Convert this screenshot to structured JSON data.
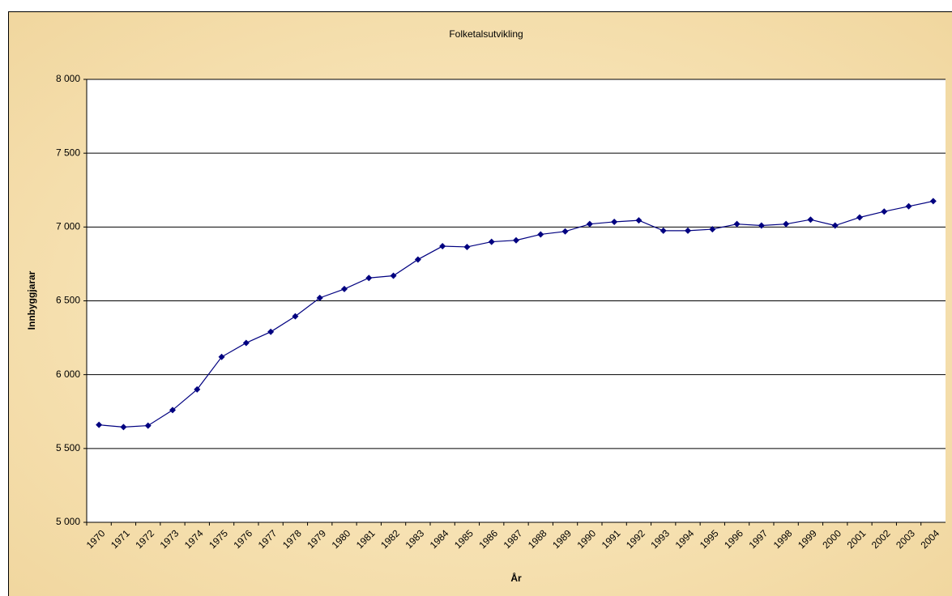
{
  "chart_data": {
    "type": "line",
    "title": "Folketalsutvikling",
    "x_label": "År",
    "y_label": "Innbyggjarar",
    "categories": [
      "1970",
      "1971",
      "1972",
      "1973",
      "1974",
      "1975",
      "1976",
      "1977",
      "1978",
      "1979",
      "1980",
      "1981",
      "1982",
      "1983",
      "1984",
      "1985",
      "1986",
      "1987",
      "1988",
      "1989",
      "1990",
      "1991",
      "1992",
      "1993",
      "1994",
      "1995",
      "1996",
      "1997",
      "1998",
      "1999",
      "2000",
      "2001",
      "2002",
      "2003",
      "2004"
    ],
    "values": [
      5660,
      5645,
      5655,
      5760,
      5900,
      6120,
      6215,
      6290,
      6395,
      6520,
      6580,
      6655,
      6670,
      6780,
      6870,
      6865,
      6900,
      6910,
      6950,
      6970,
      7020,
      7035,
      7045,
      6975,
      6975,
      6985,
      7020,
      7010,
      7020,
      7050,
      7010,
      7065,
      7105,
      7140,
      7175
    ],
    "color": "#000080",
    "ylim": [
      5000,
      8000
    ],
    "yticks": [
      {
        "value": 5000,
        "label": "5 000"
      },
      {
        "value": 5500,
        "label": "5 500"
      },
      {
        "value": 6000,
        "label": "6 000"
      },
      {
        "value": 6500,
        "label": "6 500"
      },
      {
        "value": 7000,
        "label": "7 000"
      },
      {
        "value": 7500,
        "label": "7 500"
      },
      {
        "value": 8000,
        "label": "8 000"
      }
    ],
    "grid": true
  }
}
